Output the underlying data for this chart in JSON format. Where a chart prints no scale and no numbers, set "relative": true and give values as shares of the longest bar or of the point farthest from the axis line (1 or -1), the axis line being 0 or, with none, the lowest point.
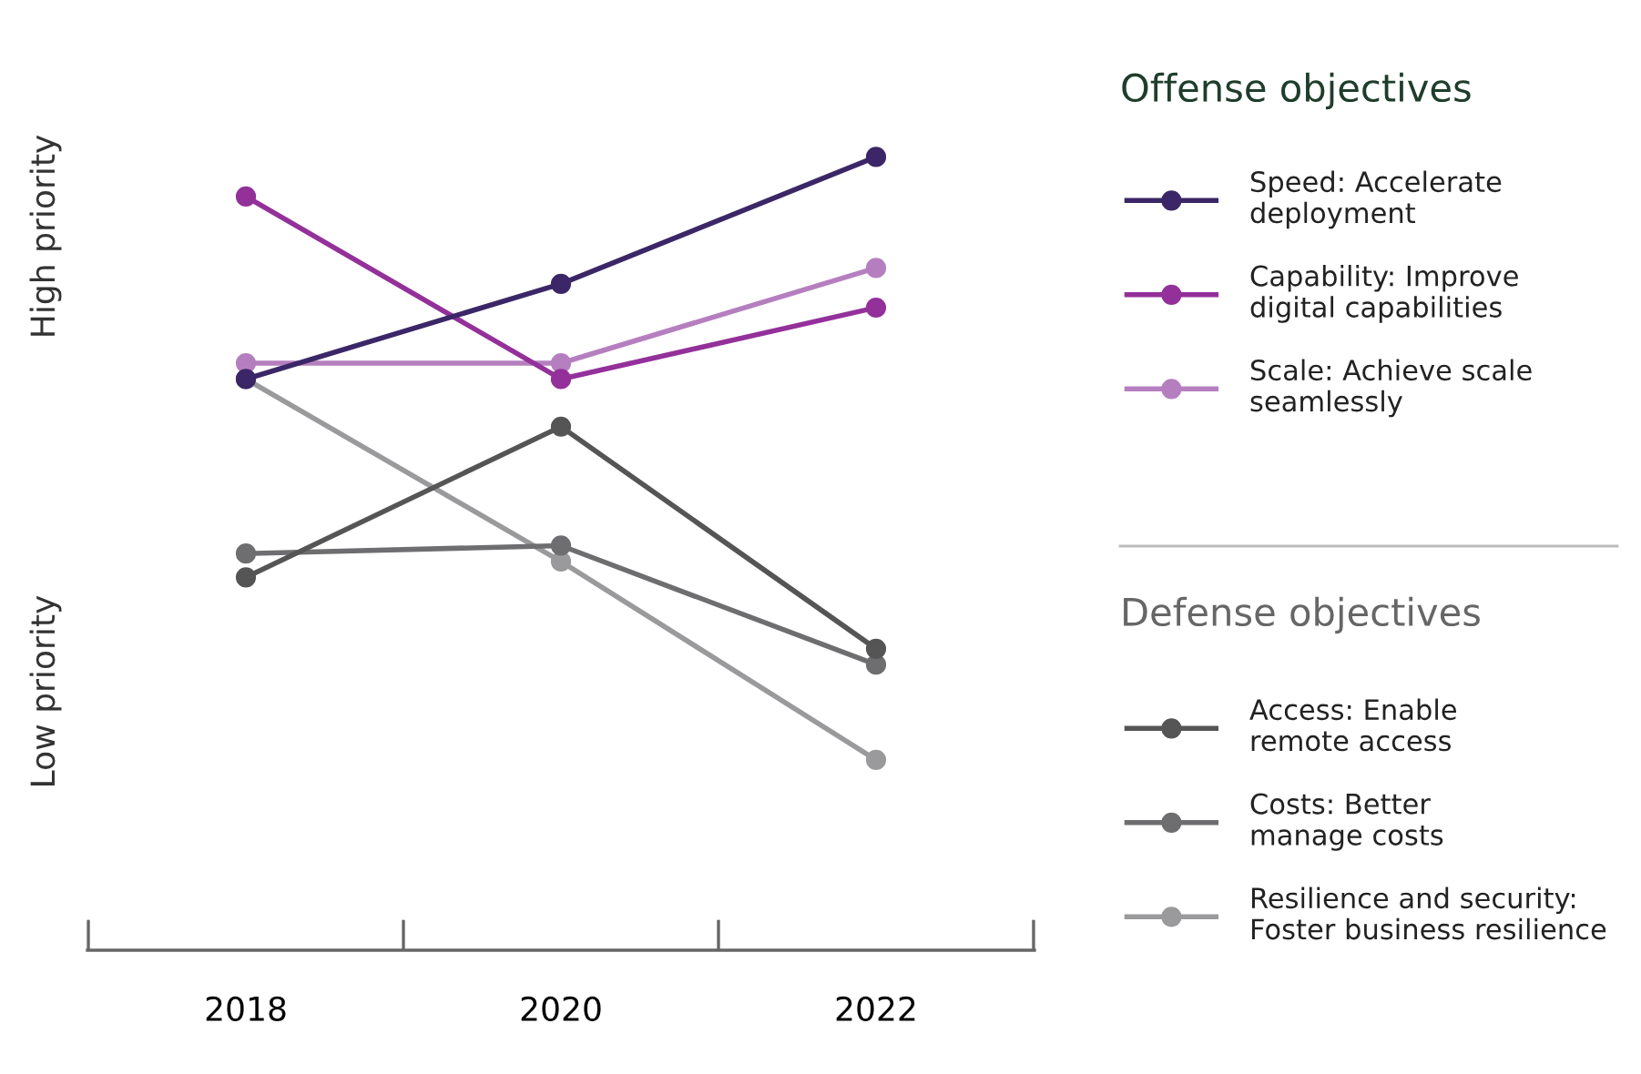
{
  "chart_data": {
    "type": "line",
    "relative": true,
    "marker": "circle",
    "line_style": "solid",
    "grid": false,
    "legend": "right",
    "categories": [
      "2018",
      "2020",
      "2022"
    ],
    "series": [
      {
        "name": "Speed: Accelerate\ndeployment",
        "color": "#3b2767",
        "values": [
          0.72,
          0.84,
          1.0
        ]
      },
      {
        "name": "Capability: Improve\ndigital capabilities",
        "color": "#93309a",
        "values": [
          0.95,
          0.72,
          0.81
        ]
      },
      {
        "name": "Scale: Achieve scale\nseamlessly",
        "color": "#b57fbf",
        "values": [
          0.74,
          0.74,
          0.86
        ]
      },
      {
        "name": "Access: Enable\nremote access",
        "color": "#555556",
        "values": [
          0.47,
          0.66,
          0.38
        ]
      },
      {
        "name": "Costs: Better\nmanage costs",
        "color": "#6e6e70",
        "values": [
          0.5,
          0.51,
          0.36
        ]
      },
      {
        "name": "Resilience and security:\nFoster business resilience",
        "color": "#9a9a9c",
        "values": [
          0.72,
          0.49,
          0.24
        ]
      }
    ],
    "annotations": [
      "High priority",
      "Low priority",
      "Offense objectives",
      "Defense objectives"
    ]
  }
}
